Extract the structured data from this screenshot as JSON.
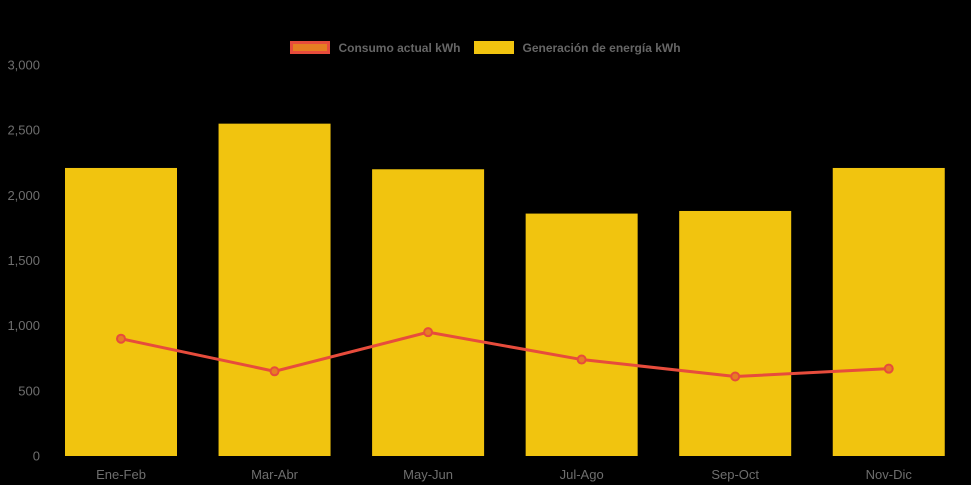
{
  "page": {
    "background": "#000000",
    "text_color": "#6e6e6e"
  },
  "chart_data": {
    "type": "mixed-bar-line",
    "title": "",
    "categories": [
      "Ene-Feb",
      "Mar-Abr",
      "May-Jun",
      "Jul-Ago",
      "Sep-Oct",
      "Nov-Dic"
    ],
    "series": [
      {
        "name": "Consumo actual kWh",
        "type": "line",
        "line_color": "#e74c3c",
        "point_fill": "#e67e22",
        "values": [
          900,
          650,
          950,
          740,
          610,
          670
        ]
      },
      {
        "name": "Generación de energía kWh",
        "type": "bar",
        "bar_color": "#f1c40f",
        "values": [
          2210,
          2550,
          2200,
          1860,
          1880,
          2210
        ]
      }
    ],
    "xlabel": "",
    "ylabel": "",
    "ylim": [
      0,
      3000
    ],
    "ytick_step": 500,
    "ytick_labels": [
      "0",
      "500",
      "1,000",
      "1,500",
      "2,000",
      "2,500",
      "3,000"
    ],
    "grid": false,
    "legend_position": "top-center",
    "axis_text_color": "#6e6e6e",
    "legend_text_color": "#666666"
  }
}
